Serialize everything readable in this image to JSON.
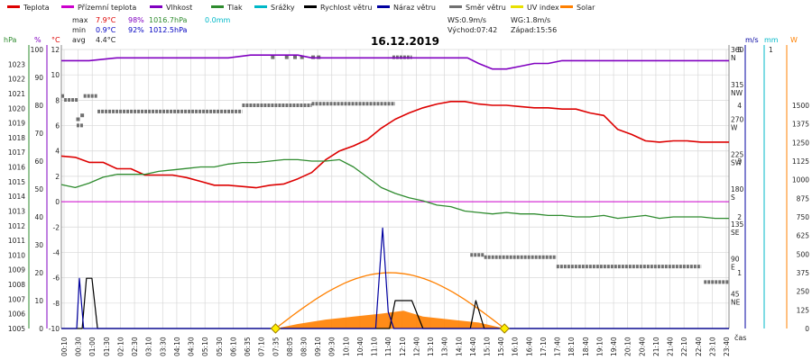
{
  "title": "16.12.2019",
  "legend": [
    {
      "label": "Teplota",
      "color": "#dd0000"
    },
    {
      "label": "Přízemní teplota",
      "color": "#cc00cc"
    },
    {
      "label": "Vlhkost",
      "color": "#8000c0"
    },
    {
      "label": "Tlak",
      "color": "#2e8b2e"
    },
    {
      "label": "Srážky",
      "color": "#00b8c8"
    },
    {
      "label": "Rychlost větru",
      "color": "#000000"
    },
    {
      "label": "Náraz větru",
      "color": "#0000a0"
    },
    {
      "label": "Směr větru",
      "color": "#707070"
    },
    {
      "label": "UV index",
      "color": "#e8e000"
    },
    {
      "label": "Solar",
      "color": "#ff8000"
    }
  ],
  "stats": {
    "max_label": "max",
    "max_temp": "7.9°C",
    "max_hum": "98%",
    "max_press": "1016.7hPa",
    "rain": "0.0mm",
    "min_label": "min",
    "min_temp": "0.9°C",
    "min_hum": "92%",
    "min_press": "1012.5hPa",
    "avg_label": "avg",
    "avg_temp": "4.4°C",
    "ws": "WS:0.9m/s",
    "wg": "WG:1.8m/s",
    "sunrise": "Východ:07:42",
    "sunset": "Západ:15:56"
  },
  "axis_units": {
    "press": "hPa",
    "hum": "%",
    "temp": "°C",
    "dir": "",
    "wind": "m/s",
    "rain": "mm",
    "solar": "W",
    "time": "čas"
  },
  "colors": {
    "temp": "#dd0000",
    "ground": "#cc00cc",
    "hum": "#8000c0",
    "press": "#2e8b2e",
    "rain": "#00b8c8",
    "wind": "#000000",
    "gust": "#0000a0",
    "dir": "#707070",
    "uv": "#e8e000",
    "solar": "#ff8000",
    "grid": "#d8d8d8"
  },
  "chart_data": {
    "type": "line",
    "title": "16.12.2019",
    "xlabel": "čas",
    "x_ticks": [
      "00:10",
      "00:30",
      "01:00",
      "01:30",
      "02:10",
      "02:30",
      "03:10",
      "03:30",
      "04:10",
      "04:30",
      "05:10",
      "05:30",
      "06:10",
      "06:35",
      "07:10",
      "07:35",
      "08:05",
      "08:30",
      "09:10",
      "09:30",
      "10:10",
      "10:40",
      "11:10",
      "11:40",
      "12:10",
      "12:40",
      "13:10",
      "13:40",
      "14:10",
      "14:40",
      "15:10",
      "15:40",
      "16:10",
      "16:40",
      "17:10",
      "17:40",
      "18:10",
      "18:40",
      "19:10",
      "19:40",
      "20:10",
      "20:40",
      "21:10",
      "21:40",
      "22:10",
      "22:40",
      "23:10",
      "23:40"
    ],
    "axes": {
      "temp": {
        "unit": "°C",
        "range": [
          -10,
          12
        ],
        "ticks": [
          12,
          10,
          8,
          6,
          4,
          2,
          0,
          -2,
          -4,
          -6,
          -8,
          -10
        ]
      },
      "press": {
        "unit": "hPa",
        "range": [
          1005,
          1024
        ],
        "ticks": [
          1023,
          1022,
          1021,
          1020,
          1019,
          1018,
          1017,
          1016,
          1015,
          1014,
          1013,
          1012,
          1011,
          1010,
          1009,
          1008,
          1007,
          1006,
          1005
        ]
      },
      "hum": {
        "unit": "%",
        "range": [
          0,
          100
        ],
        "ticks": [
          100,
          90,
          80,
          70,
          60,
          50,
          40,
          30,
          20,
          10,
          0
        ]
      },
      "dir": {
        "unit": "",
        "range": [
          0,
          360
        ],
        "ticks": [
          {
            "v": 360,
            "l": "N"
          },
          {
            "v": 315,
            "l": "NW"
          },
          {
            "v": 270,
            "l": "W"
          },
          {
            "v": 225,
            "l": "SW"
          },
          {
            "v": 180,
            "l": "S"
          },
          {
            "v": 135,
            "l": "SE"
          },
          {
            "v": 90,
            "l": "E"
          },
          {
            "v": 45,
            "l": "NE"
          }
        ]
      },
      "wind": {
        "unit": "m/s",
        "range": [
          0,
          5
        ],
        "ticks": [
          5,
          4,
          3,
          2,
          1
        ]
      },
      "rain": {
        "unit": "mm",
        "range": [
          0,
          1
        ],
        "ticks": [
          1
        ]
      },
      "solar": {
        "unit": "W",
        "range": [
          0,
          1875
        ],
        "ticks": [
          1500,
          1375,
          1250,
          1125,
          1000,
          875,
          750,
          625,
          500,
          375,
          250,
          125,
          0
        ]
      }
    },
    "series": [
      {
        "name": "Teplota",
        "key": "temp",
        "axis": "temp",
        "x": [
          0,
          0.5,
          1,
          1.5,
          2,
          2.5,
          3,
          3.5,
          4,
          4.5,
          5,
          5.5,
          6,
          6.5,
          7,
          7.5,
          8,
          8.5,
          9,
          9.5,
          10,
          10.5,
          11,
          11.5,
          12,
          12.5,
          13,
          13.5,
          14,
          14.5,
          15,
          15.5,
          16,
          16.5,
          17,
          17.5,
          18,
          18.5,
          19,
          19.5,
          20,
          20.5,
          21,
          21.5,
          22,
          22.5,
          23,
          23.5,
          24
        ],
        "y": [
          3.6,
          3.5,
          3.1,
          3.1,
          2.6,
          2.6,
          2.1,
          2.1,
          2.1,
          1.9,
          1.6,
          1.3,
          1.3,
          1.2,
          1.1,
          1.3,
          1.4,
          1.8,
          2.3,
          3.3,
          4.0,
          4.4,
          4.9,
          5.8,
          6.5,
          7.0,
          7.4,
          7.7,
          7.9,
          7.9,
          7.7,
          7.6,
          7.6,
          7.5,
          7.4,
          7.4,
          7.3,
          7.3,
          7.0,
          6.8,
          5.7,
          5.3,
          4.8,
          4.7,
          4.8,
          4.8,
          4.7,
          4.7,
          4.7
        ]
      },
      {
        "name": "Přízemní teplota",
        "key": "ground",
        "axis": "temp",
        "x": [
          0,
          24
        ],
        "y": [
          0,
          0
        ]
      },
      {
        "name": "Vlhkost",
        "key": "hum",
        "axis": "hum",
        "x": [
          0,
          1,
          2,
          3,
          4,
          5,
          6,
          6.8,
          7.5,
          8.5,
          9,
          10,
          11,
          12,
          13,
          14,
          14.6,
          15,
          15.5,
          16,
          16.5,
          17,
          17.5,
          18,
          19,
          20,
          21,
          22,
          23,
          24
        ],
        "y": [
          96,
          96,
          97,
          97,
          97,
          97,
          97,
          98,
          98,
          98,
          97,
          97,
          97,
          97,
          97,
          97,
          97,
          95,
          93,
          93,
          94,
          95,
          95,
          96,
          96,
          96,
          96,
          96,
          96,
          96
        ]
      },
      {
        "name": "Tlak",
        "key": "press",
        "axis": "press",
        "x": [
          0,
          0.5,
          1,
          1.5,
          2,
          2.5,
          3,
          3.5,
          4,
          4.5,
          5,
          5.5,
          6,
          6.5,
          7,
          7.5,
          8,
          8.5,
          9,
          9.5,
          10,
          10.5,
          11,
          11.5,
          12,
          12.5,
          13,
          13.5,
          14,
          14.5,
          15,
          15.5,
          16,
          16.5,
          17,
          17.5,
          18,
          18.5,
          19,
          19.5,
          20,
          20.5,
          21,
          21.5,
          22,
          22.5,
          23,
          23.5,
          24
        ],
        "y": [
          1014.8,
          1014.6,
          1014.9,
          1015.3,
          1015.5,
          1015.5,
          1015.5,
          1015.7,
          1015.8,
          1015.9,
          1016.0,
          1016.0,
          1016.2,
          1016.3,
          1016.3,
          1016.4,
          1016.5,
          1016.5,
          1016.4,
          1016.4,
          1016.5,
          1016.0,
          1015.3,
          1014.6,
          1014.2,
          1013.9,
          1013.7,
          1013.4,
          1013.3,
          1013.0,
          1012.9,
          1012.8,
          1012.9,
          1012.8,
          1012.8,
          1012.7,
          1012.7,
          1012.6,
          1012.6,
          1012.7,
          1012.5,
          1012.6,
          1012.7,
          1012.5,
          1012.6,
          1012.6,
          1012.6,
          1012.5,
          1012.5
        ]
      },
      {
        "name": "Rychlost větru",
        "key": "wind",
        "axis": "wind",
        "x": [
          0,
          0.75,
          0.9,
          1.1,
          1.3,
          11.8,
          12.0,
          12.6,
          13.0,
          14.7,
          14.9,
          15.2,
          24
        ],
        "y": [
          0,
          0,
          0.9,
          0.9,
          0,
          0,
          0.5,
          0.5,
          0,
          0,
          0.5,
          0,
          0
        ]
      },
      {
        "name": "Náraz větru",
        "key": "gust",
        "axis": "wind",
        "x": [
          0,
          0.55,
          0.65,
          0.8,
          11.3,
          11.55,
          11.75,
          11.95,
          24
        ],
        "y": [
          0,
          0,
          0.9,
          0,
          0,
          1.8,
          0.3,
          0,
          0
        ]
      },
      {
        "name": "Solar",
        "key": "solar",
        "axis": "solar",
        "x": [
          7.7,
          8.5,
          9.5,
          10.5,
          11.5,
          12.3,
          13,
          14,
          15,
          15.93
        ],
        "y": [
          0,
          30,
          60,
          80,
          100,
          120,
          80,
          60,
          40,
          0
        ],
        "clear_sky_peak": 375,
        "clear_sky_from": 7.7,
        "clear_sky_to": 15.93
      },
      {
        "name": "Směr větru",
        "key": "dir",
        "axis": "dir",
        "segments": [
          {
            "x0": 0.0,
            "x1": 0.1,
            "v": 300
          },
          {
            "x0": 0.1,
            "x1": 0.6,
            "v": 295
          },
          {
            "x0": 0.55,
            "x1": 0.8,
            "v": 262
          },
          {
            "x0": 0.8,
            "x1": 1.3,
            "v": 300
          },
          {
            "x0": 1.3,
            "x1": 6.5,
            "v": 280
          },
          {
            "x0": 6.5,
            "x1": 9.0,
            "v": 288
          },
          {
            "x0": 9.0,
            "x1": 12.0,
            "v": 290
          },
          {
            "x0": 11.9,
            "x1": 12.6,
            "v": 350
          },
          {
            "x0": 14.7,
            "x1": 15.2,
            "v": 95
          },
          {
            "x0": 15.2,
            "x1": 17.8,
            "v": 92
          },
          {
            "x0": 17.8,
            "x1": 23.0,
            "v": 80
          },
          {
            "x0": 23.1,
            "x1": 24.0,
            "v": 60
          }
        ],
        "dots": [
          {
            "x": 7.6,
            "v": 350
          },
          {
            "x": 8.1,
            "v": 350
          },
          {
            "x": 8.4,
            "v": 350
          },
          {
            "x": 8.65,
            "v": 350
          },
          {
            "x": 9.05,
            "v": 350
          },
          {
            "x": 9.25,
            "v": 350
          },
          {
            "x": 0.6,
            "v": 270
          },
          {
            "x": 0.75,
            "v": 275
          }
        ]
      },
      {
        "name": "UV index",
        "key": "uv",
        "axis": "temp",
        "x": [],
        "y": []
      }
    ],
    "markers": [
      {
        "label": "sunrise",
        "x": 7.7
      },
      {
        "label": "sunset",
        "x": 15.93
      }
    ]
  }
}
